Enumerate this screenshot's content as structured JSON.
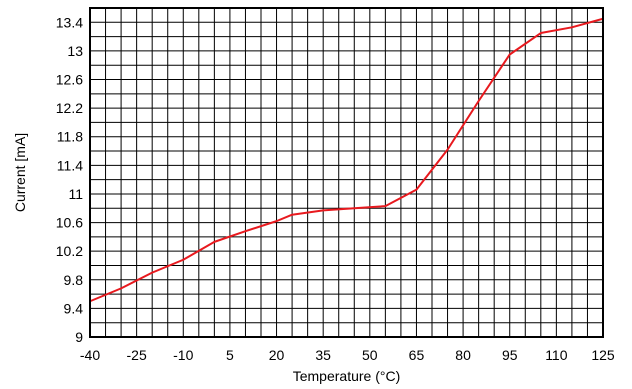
{
  "chart_data": {
    "type": "line",
    "title": "",
    "xlabel": "Temperature (°C)",
    "ylabel": "Current [mA]",
    "xlim": [
      -40,
      125
    ],
    "ylim": [
      9,
      13.6
    ],
    "grid": true,
    "x_ticks": [
      -40,
      -25,
      -10,
      5,
      20,
      35,
      50,
      65,
      80,
      95,
      110,
      125
    ],
    "x_tick_labels": [
      "-40",
      "-25",
      "-10",
      "5",
      "20",
      "35",
      "50",
      "65",
      "80",
      "95",
      "110",
      "125"
    ],
    "y_ticks": [
      9,
      9.4,
      9.8,
      10.2,
      10.6,
      11,
      11.4,
      11.8,
      12.2,
      12.6,
      13,
      13.4
    ],
    "y_tick_labels": [
      "9",
      "9.4",
      "9.8",
      "10.2",
      "10.6",
      "11",
      "11.4",
      "11.8",
      "12.2",
      "12.6",
      "13",
      "13.4"
    ],
    "series": [
      {
        "color": "#e8191e",
        "x": [
          -40,
          -30,
          -20,
          -10,
          0,
          10,
          20,
          25,
          35,
          45,
          55,
          65,
          75,
          85,
          95,
          105,
          115,
          125
        ],
        "y": [
          9.5,
          9.68,
          9.9,
          10.08,
          10.33,
          10.48,
          10.62,
          10.71,
          10.77,
          10.8,
          10.83,
          11.06,
          11.62,
          12.3,
          12.95,
          13.25,
          13.33,
          13.45
        ]
      }
    ]
  }
}
